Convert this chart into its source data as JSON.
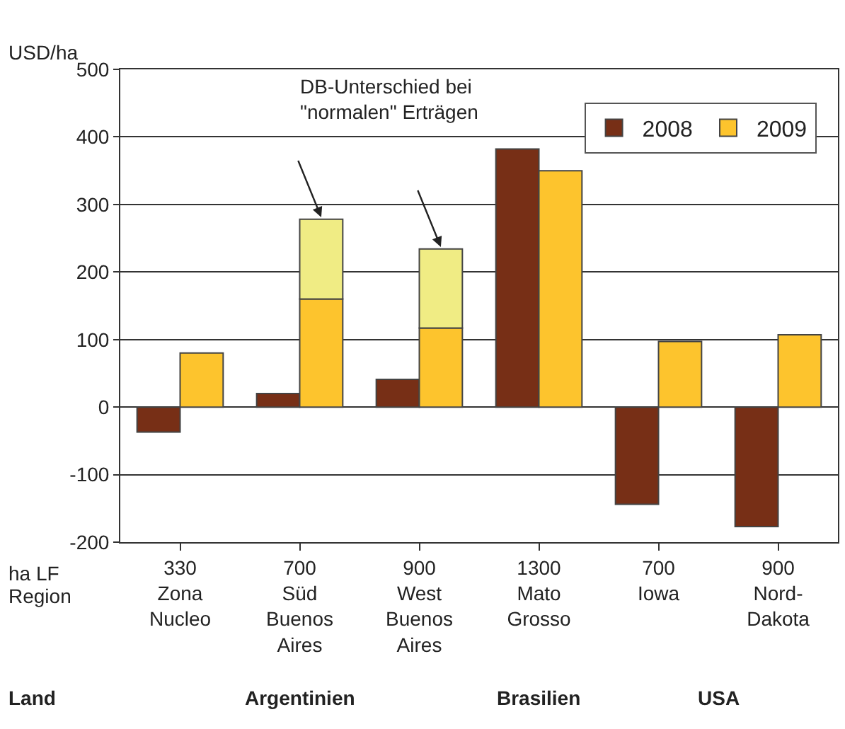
{
  "chart_data": {
    "type": "bar",
    "ylabel": "USD/ha",
    "categories": [
      "330\nZona\nNucleo",
      "700\nSüd\nBuenos\nAires",
      "900\nWest\nBuenos\nAires",
      "1300\nMato\nGrosso",
      "700\nIowa",
      "900\nNord-\nDakota"
    ],
    "series": [
      {
        "name": "2008",
        "color": "#772f16",
        "values": [
          -37,
          20,
          41,
          382,
          -144,
          -177
        ]
      },
      {
        "name": "2009",
        "color": "#fdc42d",
        "values": [
          80,
          160,
          117,
          350,
          97,
          107
        ]
      },
      {
        "color": "#f0ec84",
        "base": [
          null,
          160,
          117,
          null,
          null,
          null
        ],
        "values": [
          null,
          118,
          117,
          null,
          null,
          null
        ]
      }
    ],
    "ylim": [
      -200,
      500
    ],
    "yticks": [
      -200,
      -100,
      0,
      100,
      200,
      300,
      400,
      500
    ],
    "grid": "y",
    "legend": "top right",
    "annotations": [
      "DB-Unterschied bei\n\"normalen\" Erträgen",
      "ha LF",
      "Region",
      "Land",
      "Argentinien",
      "Brasilien",
      "USA"
    ]
  }
}
